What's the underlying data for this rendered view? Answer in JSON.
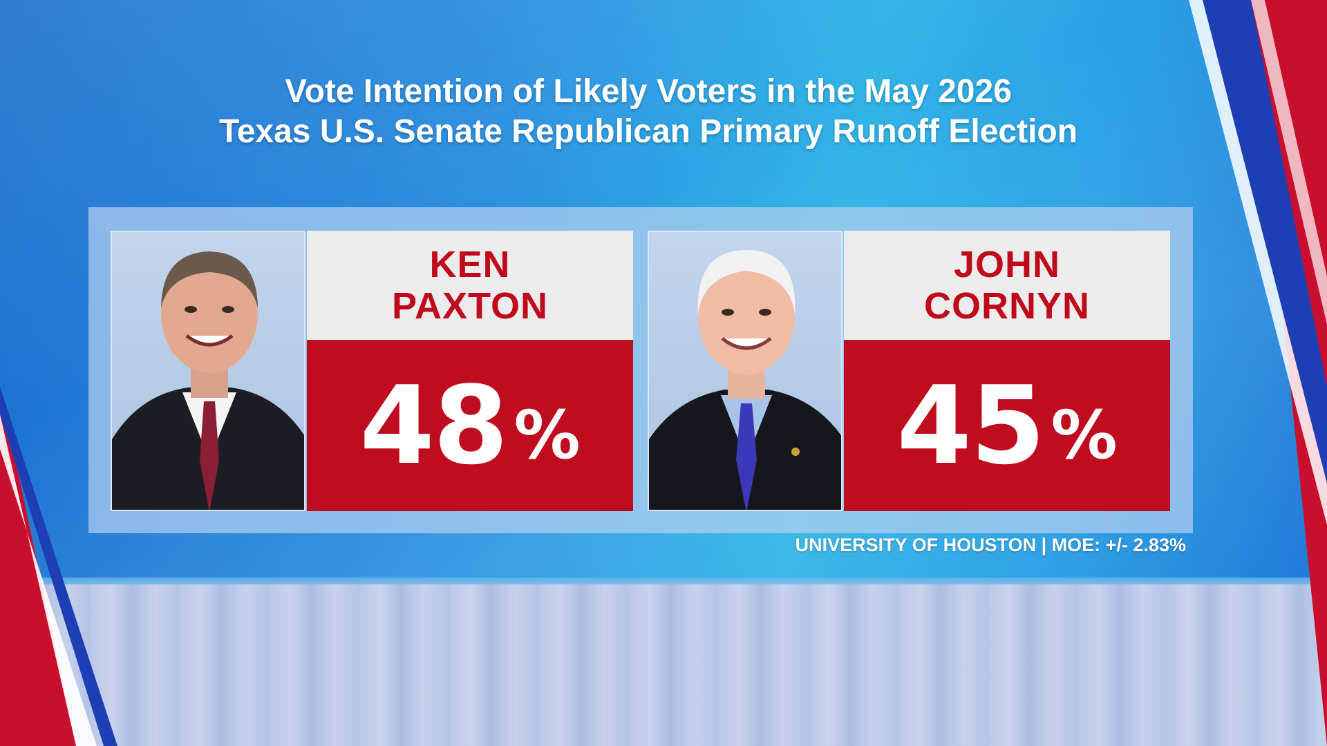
{
  "title": {
    "line1": "Vote Intention of Likely Voters in the May 2026",
    "line2": "Texas U.S. Senate Republican Primary Runoff Election"
  },
  "candidates": [
    {
      "first_name": "KEN",
      "last_name": "PAXTON",
      "percent_value": "48",
      "percent_sign": "%"
    },
    {
      "first_name": "JOHN",
      "last_name": "CORNYN",
      "percent_value": "45",
      "percent_sign": "%"
    }
  ],
  "source_line": "UNIVERSITY OF HOUSTON | MOE: +/- 2.83%",
  "colors": {
    "accent_red": "#c00c1f",
    "name_red": "#bf0a1c",
    "name_box_bg": "#ececec",
    "background_blue": "#2a8ee0"
  },
  "chart_data": {
    "type": "table",
    "categories": [
      "KEN PAXTON",
      "JOHN CORNYN"
    ],
    "values": [
      48,
      45
    ]
  }
}
